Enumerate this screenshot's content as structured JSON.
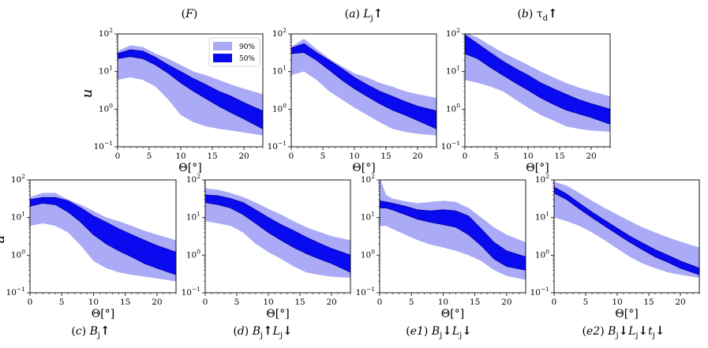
{
  "figure": {
    "x_axis_label": "Θ[°]",
    "y_axis_label": "u"
  },
  "legend": [
    {
      "label": "90%",
      "color": "#aaaaf6"
    },
    {
      "label": "50%",
      "color": "#0a0af0"
    }
  ],
  "colors": {
    "band90": "#aaaaf6",
    "band50": "#0a0af0",
    "edge50": "#00009a"
  },
  "chart_data": [
    {
      "type": "area",
      "title": "(F)",
      "xlabel": "Θ[°]",
      "ylabel": "u",
      "xlim": [
        0,
        23
      ],
      "ylim": [
        0.1,
        100
      ],
      "yscale": "log",
      "xticks": [
        0,
        5,
        10,
        15,
        20
      ],
      "yticks": [
        "10^-1",
        "10^0",
        "10^1",
        "10^2"
      ],
      "legend_visible": true,
      "show_ylabel": true,
      "x": [
        0,
        2,
        4,
        6,
        8,
        10,
        12,
        14,
        16,
        18,
        20,
        23
      ],
      "band_90": {
        "low": [
          6,
          7,
          6,
          4,
          1.8,
          0.7,
          0.45,
          0.35,
          0.3,
          0.27,
          0.24,
          0.2
        ],
        "high": [
          35,
          50,
          45,
          30,
          22,
          15,
          10,
          8,
          6,
          4.5,
          3.5,
          2.5
        ]
      },
      "band_50": {
        "low": [
          22,
          25,
          22,
          15,
          9,
          5,
          3,
          1.9,
          1.2,
          0.8,
          0.55,
          0.3
        ],
        "high": [
          30,
          38,
          35,
          24,
          15,
          10,
          6.5,
          4.5,
          3,
          2.2,
          1.5,
          0.9
        ]
      }
    },
    {
      "type": "area",
      "title": "(a) Lj↑",
      "xlabel": "Θ[°]",
      "ylabel": "",
      "xlim": [
        0,
        23
      ],
      "ylim": [
        0.1,
        100
      ],
      "yscale": "log",
      "xticks": [
        0,
        5,
        10,
        15,
        20
      ],
      "yticks": [
        "10^-1",
        "10^0",
        "10^1",
        "10^2"
      ],
      "legend_visible": false,
      "show_ylabel": false,
      "x": [
        0,
        2,
        4,
        6,
        8,
        10,
        12,
        14,
        16,
        18,
        20,
        23
      ],
      "band_90": {
        "low": [
          8,
          10,
          6,
          3,
          1.8,
          1.1,
          0.7,
          0.45,
          0.3,
          0.25,
          0.22,
          0.2
        ],
        "high": [
          45,
          75,
          40,
          22,
          14,
          9,
          7,
          5,
          4,
          3,
          2.5,
          2
        ]
      },
      "band_50": {
        "low": [
          30,
          32,
          20,
          11,
          6,
          3.5,
          2.2,
          1.4,
          0.95,
          0.7,
          0.5,
          0.3
        ],
        "high": [
          42,
          55,
          32,
          20,
          12,
          7,
          4.5,
          3,
          2.2,
          1.6,
          1.2,
          0.9
        ]
      }
    },
    {
      "type": "area",
      "title": "(b) τd↑",
      "xlabel": "Θ[°]",
      "ylabel": "",
      "xlim": [
        0,
        23
      ],
      "ylim": [
        0.1,
        100
      ],
      "yscale": "log",
      "xticks": [
        0,
        5,
        10,
        15,
        20
      ],
      "yticks": [
        "10^-1",
        "10^0",
        "10^1",
        "10^2"
      ],
      "legend_visible": false,
      "show_ylabel": false,
      "x": [
        0,
        2,
        4,
        6,
        8,
        10,
        12,
        14,
        16,
        18,
        20,
        23
      ],
      "band_90": {
        "low": [
          6,
          5,
          4,
          3,
          1.8,
          1.1,
          0.7,
          0.5,
          0.35,
          0.3,
          0.27,
          0.25
        ],
        "high": [
          110,
          80,
          50,
          32,
          22,
          15,
          10,
          7,
          5,
          3.8,
          3,
          2.2
        ]
      },
      "band_50": {
        "low": [
          30,
          22,
          13,
          8,
          5,
          3.2,
          2,
          1.35,
          0.95,
          0.75,
          0.6,
          0.4
        ],
        "high": [
          95,
          55,
          32,
          19,
          12,
          8,
          5,
          3.5,
          2.5,
          1.8,
          1.4,
          1
        ]
      }
    },
    {
      "type": "area",
      "title": "(c) Bj↑",
      "xlabel": "Θ[°]",
      "ylabel": "u",
      "xlim": [
        0,
        23
      ],
      "ylim": [
        0.1,
        100
      ],
      "yscale": "log",
      "xticks": [
        0,
        5,
        10,
        15,
        20
      ],
      "yticks": [
        "10^-1",
        "10^0",
        "10^1",
        "10^2"
      ],
      "legend_visible": false,
      "show_ylabel": true,
      "x": [
        0,
        2,
        4,
        6,
        8,
        10,
        12,
        14,
        16,
        18,
        20,
        23
      ],
      "band_90": {
        "low": [
          6,
          7,
          6,
          4,
          1.8,
          0.7,
          0.45,
          0.35,
          0.3,
          0.27,
          0.24,
          0.2
        ],
        "high": [
          35,
          45,
          45,
          30,
          22,
          15,
          10,
          8,
          6,
          4.5,
          3.5,
          2.5
        ]
      },
      "band_50": {
        "low": [
          20,
          24,
          22,
          14,
          7.5,
          3.5,
          2,
          1.3,
          0.9,
          0.6,
          0.45,
          0.3
        ],
        "high": [
          30,
          34,
          34,
          28,
          18,
          11,
          7.5,
          5,
          3.5,
          2.5,
          1.8,
          1.2
        ]
      }
    },
    {
      "type": "area",
      "title": "(d) Bj↑Lj↓",
      "xlabel": "Θ[°]",
      "ylabel": "",
      "xlim": [
        0,
        23
      ],
      "ylim": [
        0.1,
        100
      ],
      "yscale": "log",
      "xticks": [
        0,
        5,
        10,
        15,
        20
      ],
      "yticks": [
        "10^-1",
        "10^0",
        "10^1",
        "10^2"
      ],
      "legend_visible": false,
      "show_ylabel": false,
      "x": [
        0,
        2,
        4,
        6,
        8,
        10,
        12,
        14,
        16,
        18,
        20,
        23
      ],
      "band_90": {
        "low": [
          8,
          7,
          6,
          4,
          2,
          1.2,
          0.8,
          0.5,
          0.35,
          0.3,
          0.27,
          0.25
        ],
        "high": [
          60,
          55,
          45,
          35,
          25,
          17,
          12,
          8,
          5.5,
          4.2,
          3.2,
          2.5
        ]
      },
      "band_50": {
        "low": [
          25,
          22,
          18,
          12,
          7,
          4,
          2.5,
          1.6,
          1.1,
          0.8,
          0.6,
          0.35
        ],
        "high": [
          40,
          38,
          32,
          25,
          16,
          10,
          6.5,
          4.5,
          3,
          2.1,
          1.5,
          1
        ]
      }
    },
    {
      "type": "area",
      "title": "(e1) Bj↓Lj↓",
      "xlabel": "Θ[°]",
      "ylabel": "",
      "xlim": [
        0,
        23
      ],
      "ylim": [
        0.1,
        100
      ],
      "yscale": "log",
      "xticks": [
        0,
        5,
        10,
        15,
        20
      ],
      "yticks": [
        "10^-1",
        "10^0",
        "10^1",
        "10^2"
      ],
      "legend_visible": false,
      "show_ylabel": false,
      "x": [
        0,
        1,
        2,
        4,
        6,
        8,
        10,
        12,
        14,
        16,
        18,
        20,
        23
      ],
      "band_90": {
        "low": [
          6,
          6,
          5,
          3.5,
          2.5,
          1.9,
          1.6,
          1.3,
          1,
          0.7,
          0.4,
          0.28,
          0.22
        ],
        "high": [
          120,
          40,
          32,
          27,
          24,
          26,
          28,
          26,
          18,
          10,
          5.5,
          3.5,
          2.2
        ]
      },
      "band_50": {
        "low": [
          18,
          18,
          16,
          12,
          9,
          7.5,
          6.5,
          5.5,
          3.5,
          1.8,
          0.8,
          0.5,
          0.4
        ],
        "high": [
          28,
          26,
          24,
          20,
          16,
          15,
          16,
          15,
          11,
          5,
          2.2,
          1.3,
          0.9
        ]
      }
    },
    {
      "type": "area",
      "title": "(e2) Bj↓Lj↓tj↓",
      "xlabel": "Θ[°]",
      "ylabel": "",
      "xlim": [
        0,
        23
      ],
      "ylim": [
        0.1,
        100
      ],
      "yscale": "log",
      "xticks": [
        0,
        5,
        10,
        15,
        20
      ],
      "yticks": [
        "10^-1",
        "10^0",
        "10^1",
        "10^2"
      ],
      "legend_visible": false,
      "show_ylabel": false,
      "x": [
        0,
        2,
        4,
        6,
        8,
        10,
        12,
        14,
        16,
        18,
        20,
        23
      ],
      "band_90": {
        "low": [
          10,
          8,
          6,
          4,
          2.5,
          1.5,
          0.9,
          0.6,
          0.45,
          0.35,
          0.3,
          0.25
        ],
        "high": [
          90,
          70,
          45,
          28,
          18,
          12,
          8,
          5.5,
          4,
          3,
          2.3,
          1.6
        ]
      },
      "band_50": {
        "low": [
          45,
          30,
          17,
          10,
          6,
          3.6,
          2.2,
          1.4,
          0.9,
          0.65,
          0.45,
          0.3
        ],
        "high": [
          65,
          42,
          24,
          14,
          8.5,
          5.2,
          3.2,
          2.1,
          1.4,
          1,
          0.7,
          0.45
        ]
      }
    }
  ]
}
